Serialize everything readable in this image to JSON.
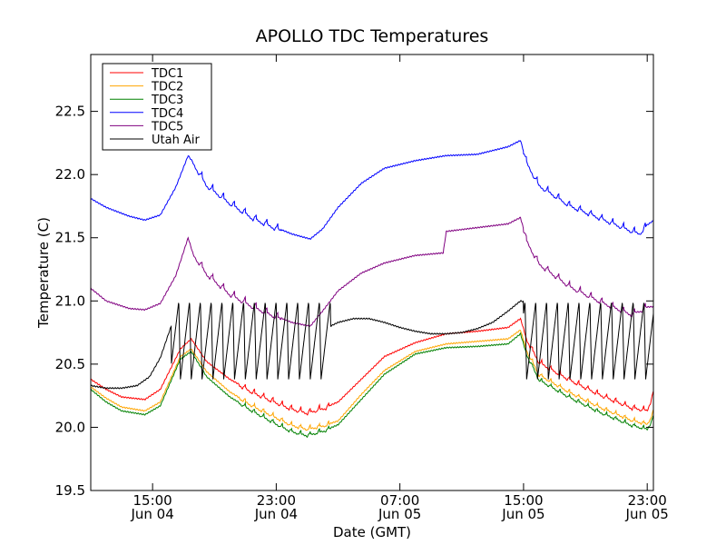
{
  "chart_data": {
    "type": "line",
    "title": "APOLLO TDC Temperatures",
    "xlabel": "Date (GMT)",
    "ylabel": "Temperature (C)",
    "xlim": [
      11.0,
      47.4
    ],
    "ylim": [
      19.5,
      22.95
    ],
    "yticks": [
      19.5,
      20.0,
      20.5,
      21.0,
      21.5,
      22.0,
      22.5
    ],
    "ytick_labels": [
      "19.5",
      "20.0",
      "20.5",
      "21.0",
      "21.5",
      "22.0",
      "22.5"
    ],
    "xticks": [
      {
        "x": 15,
        "time": "15:00",
        "date": "Jun 04"
      },
      {
        "x": 23,
        "time": "23:00",
        "date": "Jun 04"
      },
      {
        "x": 31,
        "time": "07:00",
        "date": "Jun 05"
      },
      {
        "x": 39,
        "time": "15:00",
        "date": "Jun 05"
      },
      {
        "x": 47,
        "time": "23:00",
        "date": "Jun 05"
      }
    ],
    "legend_position": "top-left",
    "grid": false,
    "x_units": "hours since 00:00 Jun 04 (GMT)",
    "series": [
      {
        "name": "TDC1",
        "color": "#ff0000",
        "sawtooth": [
          20.6,
          26.5,
          0.08,
          0.6
        ],
        "x": [
          11,
          12,
          13,
          14.5,
          15.5,
          16.8,
          17.5,
          18.5,
          20,
          21.5,
          23,
          24,
          25,
          26.2,
          27,
          28.5,
          30,
          32,
          34,
          36,
          38,
          38.8,
          39.2,
          40,
          42,
          44,
          46,
          47,
          47.4
        ],
        "y": [
          20.38,
          20.3,
          20.24,
          20.22,
          20.3,
          20.62,
          20.7,
          20.52,
          20.38,
          20.28,
          20.2,
          20.15,
          20.12,
          20.16,
          20.2,
          20.38,
          20.56,
          20.67,
          20.74,
          20.76,
          20.79,
          20.86,
          20.7,
          20.52,
          20.38,
          20.26,
          20.16,
          20.14,
          20.27
        ]
      },
      {
        "name": "TDC2",
        "color": "#ffa500",
        "sawtooth": [
          20.6,
          26.5,
          0.06,
          0.6
        ],
        "x": [
          11,
          12,
          13,
          14.5,
          15.5,
          16.8,
          17.5,
          18.5,
          20,
          21.5,
          23,
          24,
          25,
          26.2,
          27,
          28.5,
          30,
          32,
          34,
          36,
          38,
          38.8,
          39.2,
          40,
          42,
          44,
          46,
          47,
          47.4
        ],
        "y": [
          20.32,
          20.23,
          20.16,
          20.13,
          20.2,
          20.56,
          20.62,
          20.44,
          20.28,
          20.17,
          20.08,
          20.02,
          19.99,
          20.02,
          20.05,
          20.26,
          20.45,
          20.6,
          20.66,
          20.68,
          20.7,
          20.77,
          20.61,
          20.42,
          20.28,
          20.16,
          20.06,
          20.03,
          20.12
        ]
      },
      {
        "name": "TDC3",
        "color": "#008000",
        "sawtooth": [
          20.6,
          26.5,
          0.06,
          0.6
        ],
        "x": [
          11,
          12,
          13,
          14.5,
          15.5,
          16.8,
          17.5,
          18.5,
          20,
          21.5,
          23,
          24,
          25,
          26.2,
          27,
          28.5,
          30,
          32,
          34,
          36,
          38,
          38.8,
          39.2,
          40,
          42,
          44,
          46,
          47,
          47.4
        ],
        "y": [
          20.3,
          20.2,
          20.13,
          20.1,
          20.17,
          20.54,
          20.6,
          20.4,
          20.24,
          20.13,
          20.03,
          19.97,
          19.94,
          19.98,
          20.02,
          20.22,
          20.42,
          20.58,
          20.63,
          20.64,
          20.66,
          20.74,
          20.58,
          20.38,
          20.24,
          20.12,
          20.02,
          19.99,
          20.08
        ]
      },
      {
        "name": "TDC4",
        "color": "#0000ff",
        "sawtooth": [
          17.6,
          23.3,
          0.1,
          0.7
        ],
        "x": [
          11,
          12,
          13.5,
          14.5,
          15.5,
          16.5,
          17.3,
          17.6,
          18.5,
          20,
          21.5,
          23,
          24,
          25.2,
          26,
          27,
          28.5,
          30,
          32,
          34,
          36,
          37,
          38,
          38.8,
          39.2,
          40,
          42,
          44,
          46,
          46.5,
          47.4
        ],
        "y": [
          21.81,
          21.74,
          21.67,
          21.64,
          21.68,
          21.9,
          22.15,
          22.1,
          21.92,
          21.78,
          21.66,
          21.58,
          21.53,
          21.49,
          21.57,
          21.74,
          21.93,
          22.05,
          22.11,
          22.15,
          22.16,
          22.19,
          22.22,
          22.27,
          22.1,
          21.92,
          21.76,
          21.66,
          21.56,
          21.54,
          21.66
        ]
      },
      {
        "name": "TDC5",
        "color": "#800080",
        "sawtooth": [
          17.6,
          23.3,
          0.1,
          0.7
        ],
        "x": [
          11,
          12,
          13.5,
          14.5,
          15.5,
          16.5,
          17.3,
          17.6,
          18.5,
          20,
          21.5,
          23,
          24,
          25.2,
          26,
          27,
          28.5,
          30,
          32,
          33.8,
          34,
          36,
          38,
          38.8,
          39.2,
          40,
          42,
          44,
          46,
          47.4
        ],
        "y": [
          21.1,
          21.0,
          20.94,
          20.93,
          20.98,
          21.2,
          21.5,
          21.38,
          21.22,
          21.06,
          20.96,
          20.88,
          20.83,
          20.8,
          20.92,
          21.08,
          21.22,
          21.3,
          21.36,
          21.38,
          21.55,
          21.58,
          21.61,
          21.66,
          21.48,
          21.3,
          21.12,
          21.0,
          20.9,
          20.98
        ]
      },
      {
        "name": "Utah Air",
        "color": "#000000",
        "sawtooth": [
          16.2,
          26.5,
          0.65,
          0.7
        ],
        "x": [
          11,
          12,
          13,
          14,
          14.8,
          15.5,
          16.2,
          26.5,
          27,
          28,
          29,
          30,
          31,
          32,
          33,
          34,
          35,
          36,
          37,
          38,
          38.8,
          39.5,
          47.4
        ],
        "y": [
          20.33,
          20.31,
          20.31,
          20.33,
          20.4,
          20.55,
          20.8,
          20.8,
          20.83,
          20.86,
          20.86,
          20.83,
          20.79,
          20.76,
          20.74,
          20.74,
          20.75,
          20.78,
          20.83,
          20.92,
          21.0,
          20.98,
          20.98
        ]
      }
    ]
  }
}
